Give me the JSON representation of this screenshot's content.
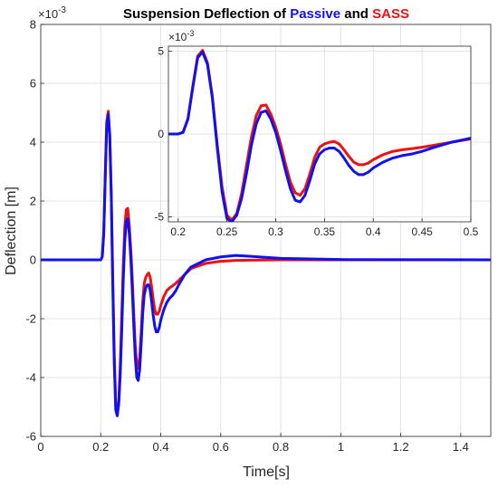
{
  "chart_data": [
    {
      "type": "line",
      "title": {
        "prefix": "Suspension Deflection of",
        "series1_word": "Passive",
        "connector": "and",
        "series2_word": "SASS"
      },
      "xlabel": "Time[s]",
      "ylabel": "Deflection [m]",
      "exponent_label": "×10",
      "exponent_value": "-3",
      "xlim": [
        0,
        1.5
      ],
      "ylim": [
        -6,
        8
      ],
      "xticks": [
        0,
        0.2,
        0.4,
        0.6,
        0.8,
        1,
        1.2,
        1.4
      ],
      "yticks": [
        -6,
        -4,
        -2,
        0,
        2,
        4,
        6,
        8
      ],
      "xtick_labels": [
        "0",
        "0.2",
        "0.4",
        "0.6",
        "0.8",
        "1",
        "1.2",
        "1.4"
      ],
      "ytick_labels": [
        "-6",
        "-4",
        "-2",
        "0",
        "2",
        "4",
        "6",
        "8"
      ],
      "grid": true,
      "series": [
        {
          "name": "SASS",
          "color": "#ee1111",
          "x": [
            0,
            0.2,
            0.205,
            0.21,
            0.215,
            0.22,
            0.225,
            0.23,
            0.235,
            0.24,
            0.245,
            0.25,
            0.255,
            0.26,
            0.265,
            0.27,
            0.275,
            0.28,
            0.285,
            0.29,
            0.295,
            0.3,
            0.305,
            0.31,
            0.315,
            0.32,
            0.325,
            0.33,
            0.335,
            0.34,
            0.345,
            0.35,
            0.355,
            0.36,
            0.365,
            0.37,
            0.375,
            0.38,
            0.385,
            0.39,
            0.395,
            0.4,
            0.41,
            0.42,
            0.43,
            0.44,
            0.45,
            0.46,
            0.48,
            0.5,
            0.55,
            0.6,
            0.65,
            0.7,
            0.8,
            1.0,
            1.5
          ],
          "y": [
            0,
            0,
            0.1,
            0.9,
            2.9,
            4.7,
            5.05,
            4.3,
            2.3,
            -0.6,
            -3.2,
            -4.9,
            -5.2,
            -4.8,
            -3.6,
            -1.9,
            -0.2,
            1.1,
            1.7,
            1.75,
            1.2,
            0.4,
            -0.6,
            -1.8,
            -2.9,
            -3.55,
            -3.7,
            -3.3,
            -2.4,
            -1.4,
            -0.8,
            -0.6,
            -0.5,
            -0.45,
            -0.6,
            -0.95,
            -1.35,
            -1.7,
            -1.85,
            -1.85,
            -1.75,
            -1.55,
            -1.25,
            -1.05,
            -0.95,
            -0.88,
            -0.8,
            -0.7,
            -0.5,
            -0.3,
            -0.12,
            -0.05,
            -0.02,
            -0.01,
            0,
            0,
            0
          ]
        },
        {
          "name": "Passive",
          "color": "#1111ee",
          "x": [
            0,
            0.2,
            0.205,
            0.21,
            0.215,
            0.22,
            0.225,
            0.23,
            0.235,
            0.24,
            0.245,
            0.25,
            0.255,
            0.26,
            0.265,
            0.27,
            0.275,
            0.28,
            0.285,
            0.29,
            0.295,
            0.3,
            0.305,
            0.31,
            0.315,
            0.32,
            0.325,
            0.33,
            0.335,
            0.34,
            0.345,
            0.35,
            0.355,
            0.36,
            0.365,
            0.37,
            0.375,
            0.38,
            0.385,
            0.39,
            0.395,
            0.4,
            0.41,
            0.42,
            0.43,
            0.44,
            0.45,
            0.46,
            0.48,
            0.5,
            0.55,
            0.6,
            0.65,
            0.7,
            0.8,
            1.0,
            1.5
          ],
          "y": [
            0,
            0,
            0.1,
            0.9,
            2.8,
            4.6,
            4.95,
            4.2,
            2.2,
            -0.8,
            -3.5,
            -5.1,
            -5.3,
            -4.9,
            -3.9,
            -2.4,
            -0.7,
            0.6,
            1.3,
            1.4,
            0.9,
            0.1,
            -1.0,
            -2.2,
            -3.3,
            -4.0,
            -4.1,
            -3.7,
            -2.8,
            -1.8,
            -1.2,
            -0.95,
            -0.85,
            -0.85,
            -1.05,
            -1.45,
            -1.9,
            -2.25,
            -2.45,
            -2.45,
            -2.3,
            -2.05,
            -1.7,
            -1.45,
            -1.3,
            -1.2,
            -1.05,
            -0.85,
            -0.5,
            -0.25,
            0.0,
            0.1,
            0.15,
            0.12,
            0.05,
            0.01,
            0
          ]
        }
      ]
    },
    {
      "type": "line",
      "role": "inset",
      "exponent_label": "×10",
      "exponent_value": "-3",
      "xlim": [
        0.19,
        0.5
      ],
      "ylim": [
        -5.3,
        5.3
      ],
      "xticks": [
        0.2,
        0.25,
        0.3,
        0.35,
        0.4,
        0.45,
        0.5
      ],
      "yticks": [
        -5,
        0,
        5
      ],
      "xtick_labels": [
        "0.2",
        "0.25",
        "0.3",
        "0.35",
        "0.4",
        "0.45",
        "0.5"
      ],
      "ytick_labels": [
        "-5",
        "0",
        "5"
      ],
      "grid": true,
      "series_ref": "same as main chart"
    }
  ]
}
